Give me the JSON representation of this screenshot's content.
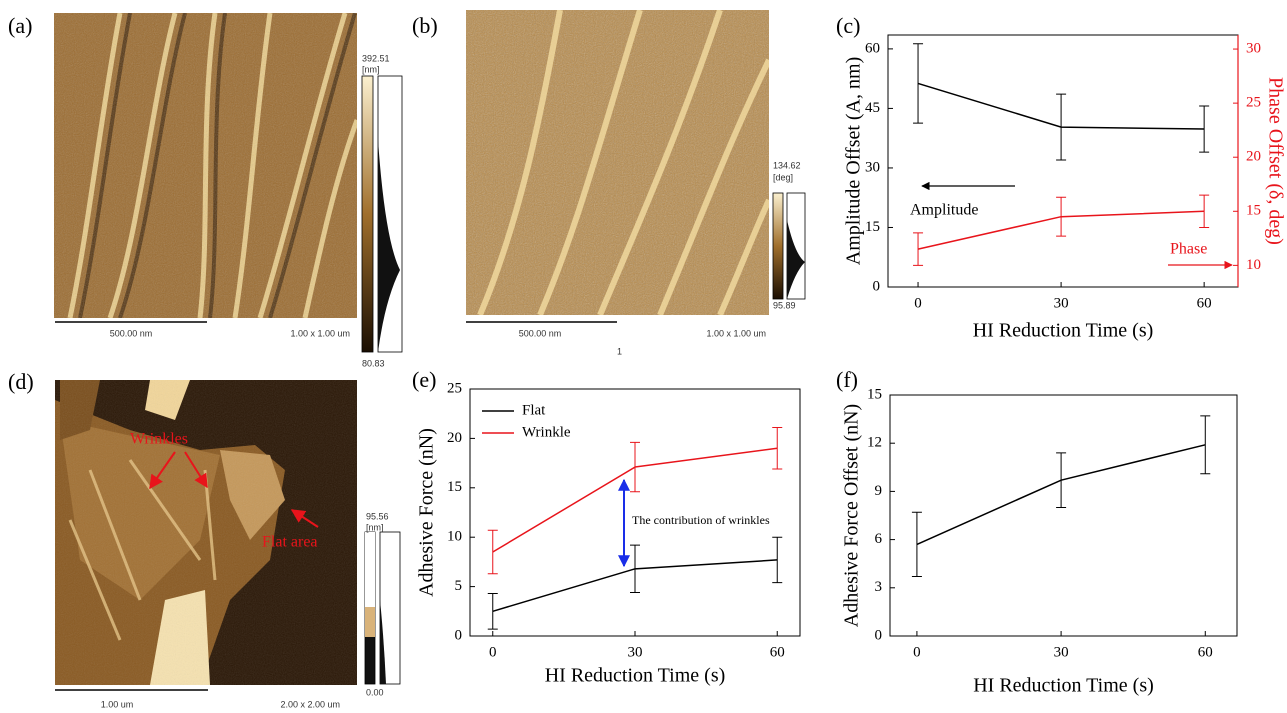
{
  "images": [
    {
      "panel": "(a)",
      "scale_bar": "500.00 nm",
      "size": "1.00 x 1.00 um",
      "colorbar_max": "392.51",
      "colorbar_unit": "[nm]",
      "colorbar_min": "80.83"
    },
    {
      "panel": "(b)",
      "scale_bar": "500.00 nm",
      "size": "1.00 x 1.00 um",
      "colorbar_max": "134.62",
      "colorbar_unit": "[deg]",
      "colorbar_min": "95.89",
      "marker": "1"
    },
    {
      "panel": "(d)",
      "scale_bar": "1.00 um",
      "size": "2.00 x 2.00 um",
      "colorbar_max": "95.56",
      "colorbar_unit": "[nm]",
      "colorbar_min": "0.00",
      "annotations": [
        "Wrinkles",
        "Flat area"
      ]
    }
  ],
  "chart_data": [
    {
      "type": "line",
      "panel": "(c)",
      "xlabel": "HI Reduction Time (s)",
      "ylabel": "Amplitude Offset (A, nm)",
      "y2label": "Phase Offset (δ, deg)",
      "x": [
        0,
        30,
        60
      ],
      "xlim": [
        -6.3,
        67.1
      ],
      "xticks": [
        0,
        30,
        60
      ],
      "ylim": [
        0,
        63.5
      ],
      "yticks": [
        0,
        15,
        30,
        45,
        60
      ],
      "y2lim": [
        8,
        31.3
      ],
      "y2ticks": [
        10,
        15,
        20,
        25,
        30
      ],
      "y2color": "#e8141b",
      "series": [
        {
          "name": "Amplitude",
          "color": "#000000",
          "values": [
            51.3,
            40.3,
            39.8
          ],
          "errors": [
            10,
            8.3,
            5.8
          ]
        },
        {
          "name": "Phase",
          "color": "#e8141b",
          "axis": "y2",
          "values": [
            11.5,
            14.5,
            15
          ],
          "errors": [
            1.5,
            1.8,
            1.5
          ]
        }
      ]
    },
    {
      "type": "line",
      "panel": "(e)",
      "xlabel": "HI Reduction Time (s)",
      "ylabel": "Adhesive Force (nN)",
      "x": [
        0,
        30,
        60
      ],
      "xlim": [
        -4.8,
        64.8
      ],
      "xticks": [
        0,
        30,
        60
      ],
      "ylim": [
        0,
        25
      ],
      "yticks": [
        0,
        5,
        10,
        15,
        20,
        25
      ],
      "legend": "upper left",
      "annotation": "The contribution of wrinkles",
      "series": [
        {
          "name": "Flat",
          "color": "#000000",
          "values": [
            2.5,
            6.8,
            7.7
          ],
          "errors": [
            1.8,
            2.4,
            2.3
          ]
        },
        {
          "name": "Wrinkle",
          "color": "#e8141b",
          "values": [
            8.5,
            17.1,
            19.0
          ],
          "errors": [
            2.2,
            2.5,
            2.1
          ]
        }
      ]
    },
    {
      "type": "line",
      "panel": "(f)",
      "xlabel": "HI Reduction Time (s)",
      "ylabel": "Adhesive Force Offset (nN)",
      "x": [
        0,
        30,
        60
      ],
      "xlim": [
        -5.6,
        66.6
      ],
      "xticks": [
        0,
        30,
        60
      ],
      "ylim": [
        0,
        15
      ],
      "yticks": [
        0,
        3,
        6,
        9,
        12,
        15
      ],
      "series": [
        {
          "color": "#000000",
          "values": [
            5.7,
            9.7,
            11.9
          ],
          "errors": [
            2.0,
            1.7,
            1.8
          ]
        }
      ]
    }
  ]
}
